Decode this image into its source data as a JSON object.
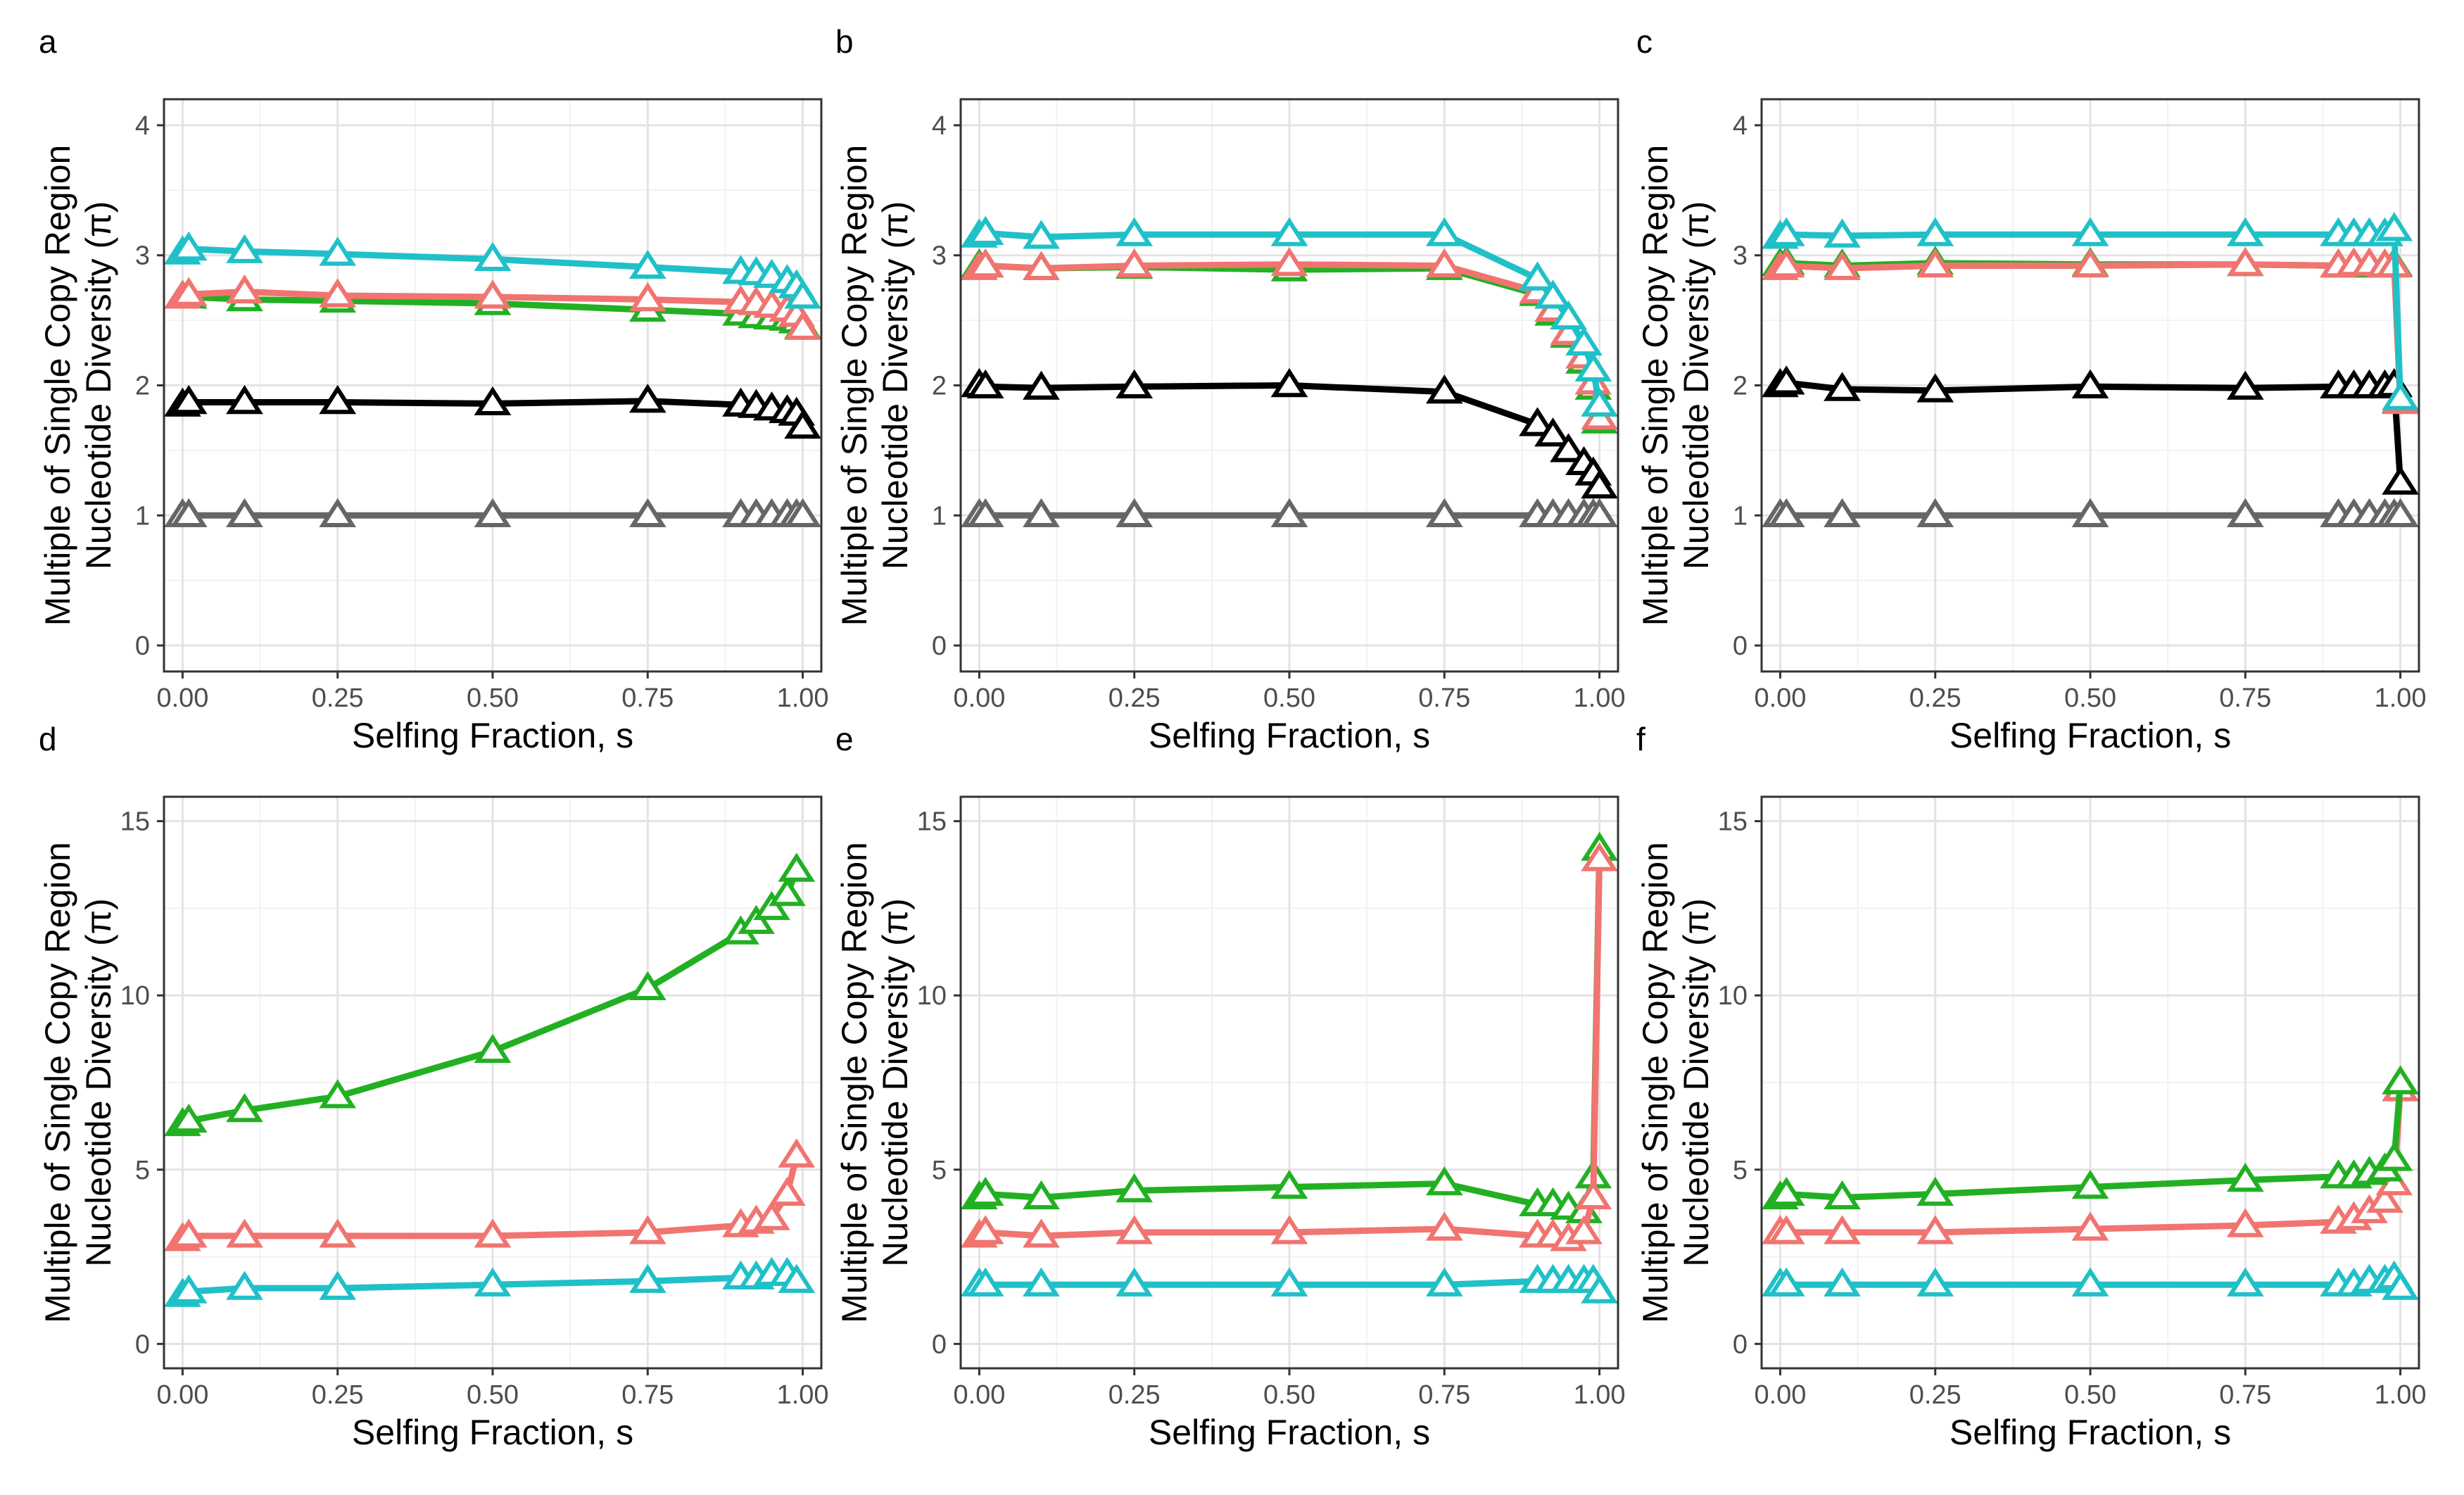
{
  "chart_data": [
    {
      "panel": "a",
      "type": "line",
      "xlabel": "Selfing Fraction, s",
      "ylabel": [
        "Multiple of Single Copy Region",
        "Nucleotide Diversity (π)"
      ],
      "xlim": [
        -0.03,
        1.03
      ],
      "ylim": [
        -0.2,
        4.2
      ],
      "x_ticks": [
        0,
        0.25,
        0.5,
        0.75,
        1
      ],
      "x_tick_labels": [
        "0.00",
        "0.25",
        "0.50",
        "0.75",
        "1.00"
      ],
      "y_ticks": [
        0,
        1,
        2,
        3,
        4
      ],
      "y_tick_labels": [
        "0",
        "1",
        "2",
        "3",
        "4"
      ],
      "x": [
        0,
        0.01,
        0.1,
        0.25,
        0.5,
        0.75,
        0.9,
        0.925,
        0.95,
        0.975,
        0.99,
        1.0
      ],
      "series": [
        {
          "name": "gray",
          "color": "#666666",
          "values": [
            1,
            1,
            1,
            1,
            1,
            1,
            1,
            1,
            1,
            1,
            1,
            1
          ]
        },
        {
          "name": "black",
          "color": "#000000",
          "values": [
            1.85,
            1.87,
            1.87,
            1.87,
            1.86,
            1.88,
            1.85,
            1.84,
            1.82,
            1.8,
            1.78,
            1.68
          ]
        },
        {
          "name": "green",
          "color": "#22b022",
          "values": [
            2.68,
            2.68,
            2.66,
            2.65,
            2.63,
            2.58,
            2.55,
            2.53,
            2.52,
            2.51,
            2.49,
            2.45
          ]
        },
        {
          "name": "red",
          "color": "#f07470",
          "values": [
            2.68,
            2.7,
            2.72,
            2.69,
            2.68,
            2.66,
            2.64,
            2.63,
            2.61,
            2.58,
            2.54,
            2.44
          ]
        },
        {
          "name": "cyan",
          "color": "#20c0c8",
          "values": [
            3.02,
            3.05,
            3.03,
            3.01,
            2.97,
            2.91,
            2.87,
            2.86,
            2.84,
            2.8,
            2.76,
            2.68
          ]
        }
      ]
    },
    {
      "panel": "b",
      "type": "line",
      "xlabel": "Selfing Fraction, s",
      "ylabel": [
        "Multiple of Single Copy Region",
        "Nucleotide Diversity (π)"
      ],
      "xlim": [
        -0.03,
        1.03
      ],
      "ylim": [
        -0.2,
        4.2
      ],
      "x_ticks": [
        0,
        0.25,
        0.5,
        0.75,
        1
      ],
      "x_tick_labels": [
        "0.00",
        "0.25",
        "0.50",
        "0.75",
        "1.00"
      ],
      "y_ticks": [
        0,
        1,
        2,
        3,
        4
      ],
      "y_tick_labels": [
        "0",
        "1",
        "2",
        "3",
        "4"
      ],
      "x": [
        0,
        0.01,
        0.1,
        0.25,
        0.5,
        0.75,
        0.9,
        0.925,
        0.95,
        0.975,
        0.99,
        1.0
      ],
      "series": [
        {
          "name": "gray",
          "color": "#666666",
          "values": [
            1,
            1,
            1,
            1,
            1,
            1,
            1,
            1,
            1,
            1,
            1,
            1
          ]
        },
        {
          "name": "black",
          "color": "#000000",
          "values": [
            2.0,
            1.99,
            1.98,
            1.99,
            2.0,
            1.95,
            1.7,
            1.62,
            1.5,
            1.4,
            1.32,
            1.22
          ]
        },
        {
          "name": "green",
          "color": "#22b022",
          "values": [
            2.92,
            2.92,
            2.9,
            2.91,
            2.89,
            2.9,
            2.7,
            2.55,
            2.38,
            2.18,
            1.98,
            1.72
          ]
        },
        {
          "name": "red",
          "color": "#f07470",
          "values": [
            2.9,
            2.92,
            2.9,
            2.92,
            2.93,
            2.92,
            2.72,
            2.58,
            2.4,
            2.22,
            2.02,
            1.75
          ]
        },
        {
          "name": "cyan",
          "color": "#20c0c8",
          "values": [
            3.15,
            3.17,
            3.14,
            3.16,
            3.16,
            3.16,
            2.82,
            2.68,
            2.52,
            2.32,
            2.12,
            1.85
          ]
        }
      ]
    },
    {
      "panel": "c",
      "type": "line",
      "xlabel": "Selfing Fraction, s",
      "ylabel": [
        "Multiple of Single Copy Region",
        "Nucleotide Diversity (π)"
      ],
      "xlim": [
        -0.03,
        1.03
      ],
      "ylim": [
        -0.2,
        4.2
      ],
      "x_ticks": [
        0,
        0.25,
        0.5,
        0.75,
        1
      ],
      "x_tick_labels": [
        "0.00",
        "0.25",
        "0.50",
        "0.75",
        "1.00"
      ],
      "y_ticks": [
        0,
        1,
        2,
        3,
        4
      ],
      "y_tick_labels": [
        "0",
        "1",
        "2",
        "3",
        "4"
      ],
      "x": [
        0,
        0.01,
        0.1,
        0.25,
        0.5,
        0.75,
        0.9,
        0.925,
        0.95,
        0.975,
        0.99,
        1.0
      ],
      "series": [
        {
          "name": "gray",
          "color": "#666666",
          "values": [
            1,
            1,
            1,
            1,
            1,
            1,
            1,
            1,
            1,
            1,
            1,
            1
          ]
        },
        {
          "name": "black",
          "color": "#000000",
          "values": [
            2.0,
            2.02,
            1.97,
            1.96,
            1.99,
            1.98,
            1.99,
            1.99,
            1.99,
            1.99,
            2.0,
            1.25
          ]
        },
        {
          "name": "green",
          "color": "#22b022",
          "values": [
            2.93,
            2.94,
            2.92,
            2.94,
            2.93,
            2.93,
            2.92,
            2.92,
            2.92,
            2.92,
            2.93,
            1.88
          ]
        },
        {
          "name": "red",
          "color": "#f07470",
          "values": [
            2.9,
            2.92,
            2.9,
            2.92,
            2.92,
            2.93,
            2.92,
            2.93,
            2.93,
            2.92,
            2.92,
            1.87
          ]
        },
        {
          "name": "cyan",
          "color": "#20c0c8",
          "values": [
            3.14,
            3.16,
            3.15,
            3.16,
            3.16,
            3.16,
            3.16,
            3.16,
            3.16,
            3.16,
            3.2,
            1.9
          ]
        }
      ]
    },
    {
      "panel": "d",
      "type": "line",
      "xlabel": "Selfing Fraction, s",
      "ylabel": [
        "Multiple of Single Copy Region",
        "Nucleotide Diversity (π)"
      ],
      "xlim": [
        -0.03,
        1.03
      ],
      "ylim": [
        -0.7,
        15.7
      ],
      "x_ticks": [
        0,
        0.25,
        0.5,
        0.75,
        1
      ],
      "x_tick_labels": [
        "0.00",
        "0.25",
        "0.50",
        "0.75",
        "1.00"
      ],
      "y_ticks": [
        0,
        5,
        10,
        15
      ],
      "y_tick_labels": [
        "0",
        "5",
        "10",
        "15"
      ],
      "x": [
        0,
        0.01,
        0.1,
        0.25,
        0.5,
        0.75,
        0.9,
        0.925,
        0.95,
        0.975,
        0.99
      ],
      "series": [
        {
          "name": "cyan",
          "color": "#20c0c8",
          "values": [
            1.4,
            1.5,
            1.6,
            1.6,
            1.7,
            1.8,
            1.9,
            1.9,
            2.0,
            2.0,
            1.8
          ]
        },
        {
          "name": "red",
          "color": "#f07470",
          "values": [
            3.0,
            3.1,
            3.1,
            3.1,
            3.1,
            3.2,
            3.4,
            3.5,
            3.6,
            4.3,
            5.4
          ]
        },
        {
          "name": "green",
          "color": "#22b022",
          "values": [
            6.3,
            6.4,
            6.7,
            7.1,
            8.4,
            10.2,
            11.8,
            12.1,
            12.5,
            12.9,
            13.6
          ]
        }
      ]
    },
    {
      "panel": "e",
      "type": "line",
      "xlabel": "Selfing Fraction, s",
      "ylabel": [
        "Multiple of Single Copy Region",
        "Nucleotide Diversity (π)"
      ],
      "xlim": [
        -0.03,
        1.03
      ],
      "ylim": [
        -0.7,
        15.7
      ],
      "x_ticks": [
        0,
        0.25,
        0.5,
        0.75,
        1
      ],
      "x_tick_labels": [
        "0.00",
        "0.25",
        "0.50",
        "0.75",
        "1.00"
      ],
      "y_ticks": [
        0,
        5,
        10,
        15
      ],
      "y_tick_labels": [
        "0",
        "5",
        "10",
        "15"
      ],
      "x": [
        0,
        0.01,
        0.1,
        0.25,
        0.5,
        0.75,
        0.9,
        0.925,
        0.95,
        0.975,
        0.99,
        1.0
      ],
      "series": [
        {
          "name": "cyan",
          "color": "#20c0c8",
          "values": [
            1.7,
            1.7,
            1.7,
            1.7,
            1.7,
            1.7,
            1.8,
            1.8,
            1.8,
            1.8,
            1.8,
            1.5
          ]
        },
        {
          "name": "green",
          "color": "#22b022",
          "values": [
            4.2,
            4.3,
            4.2,
            4.4,
            4.5,
            4.6,
            4.0,
            4.0,
            3.9,
            3.8,
            4.8,
            14.2
          ]
        },
        {
          "name": "red",
          "color": "#f07470",
          "values": [
            3.1,
            3.2,
            3.1,
            3.2,
            3.2,
            3.3,
            3.1,
            3.1,
            3.0,
            3.2,
            4.2,
            13.9
          ]
        }
      ]
    },
    {
      "panel": "f",
      "type": "line",
      "xlabel": "Selfing Fraction, s",
      "ylabel": [
        "Multiple of Single Copy Region",
        "Nucleotide Diversity (π)"
      ],
      "xlim": [
        -0.03,
        1.03
      ],
      "ylim": [
        -0.7,
        15.7
      ],
      "x_ticks": [
        0,
        0.25,
        0.5,
        0.75,
        1
      ],
      "x_tick_labels": [
        "0.00",
        "0.25",
        "0.50",
        "0.75",
        "1.00"
      ],
      "y_ticks": [
        0,
        5,
        10,
        15
      ],
      "y_tick_labels": [
        "0",
        "5",
        "10",
        "15"
      ],
      "x": [
        0,
        0.01,
        0.1,
        0.25,
        0.5,
        0.75,
        0.9,
        0.925,
        0.95,
        0.975,
        0.99,
        1.0
      ],
      "series": [
        {
          "name": "cyan",
          "color": "#20c0c8",
          "values": [
            1.7,
            1.7,
            1.7,
            1.7,
            1.7,
            1.7,
            1.7,
            1.7,
            1.8,
            1.8,
            1.9,
            1.6
          ]
        },
        {
          "name": "red",
          "color": "#f07470",
          "values": [
            3.2,
            3.2,
            3.2,
            3.2,
            3.3,
            3.4,
            3.5,
            3.6,
            3.8,
            4.1,
            4.6,
            7.3
          ]
        },
        {
          "name": "green",
          "color": "#22b022",
          "values": [
            4.2,
            4.3,
            4.2,
            4.3,
            4.5,
            4.7,
            4.8,
            4.8,
            4.9,
            5.0,
            5.3,
            7.5
          ]
        }
      ]
    }
  ]
}
